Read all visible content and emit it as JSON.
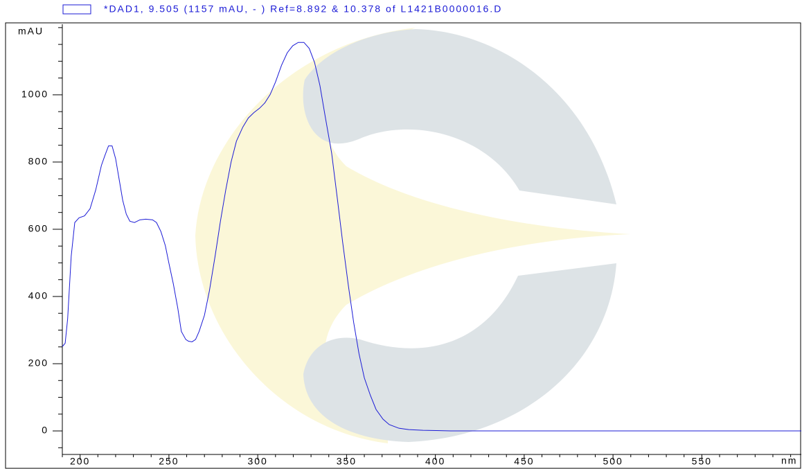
{
  "chart_data": {
    "type": "line",
    "title": "*DAD1, 9.505 (1157 mAU, - ) Ref=8.892 & 10.378 of L1421B0000016.D",
    "y_label": "mAU",
    "x_label": "nm",
    "color": "#1a1ad6",
    "xlim": [
      190,
      606
    ],
    "ylim": [
      -70,
      1210
    ],
    "xticks": [
      200,
      250,
      300,
      350,
      400,
      450,
      500,
      550
    ],
    "yticks": [
      0,
      200,
      400,
      600,
      800,
      1000
    ],
    "x": [
      190,
      191.6,
      193,
      195,
      197,
      199.4,
      202.5,
      205.6,
      208.8,
      212,
      214,
      216,
      218,
      220,
      222,
      224,
      226,
      228,
      230.6,
      233.7,
      237,
      240.8,
      243,
      245.5,
      248,
      250,
      252.5,
      255,
      257,
      259.5,
      261,
      263,
      265,
      267,
      270,
      272.8,
      276,
      279,
      282,
      285,
      288,
      291.6,
      294.7,
      297.8,
      301,
      304,
      307,
      310,
      313.4,
      316.6,
      319.7,
      322.8,
      326,
      329,
      332,
      335,
      338,
      341.6,
      344.7,
      347.8,
      351,
      354,
      357,
      360,
      363.4,
      366.6,
      370.5,
      374,
      379.5,
      385,
      393,
      408.75,
      467,
      606
    ],
    "values": [
      251,
      261,
      334,
      520,
      620,
      634,
      640,
      661,
      717,
      790,
      820,
      848,
      848,
      810,
      748,
      686,
      645,
      624,
      620,
      628,
      630,
      628,
      620,
      593,
      551,
      499,
      437,
      365,
      296,
      272,
      267,
      265,
      272,
      296,
      344,
      417,
      520,
      624,
      717,
      800,
      862,
      904,
      931,
      947,
      960,
      976,
      1001,
      1038,
      1088,
      1125,
      1146,
      1156,
      1156,
      1138,
      1096,
      1028,
      935,
      827,
      696,
      562,
      433,
      323,
      230,
      158,
      106,
      64,
      35,
      19,
      8,
      4,
      2,
      0,
      0,
      0
    ]
  }
}
